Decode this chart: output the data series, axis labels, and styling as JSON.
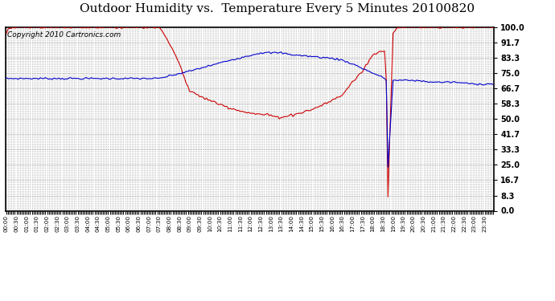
{
  "title": "Outdoor Humidity vs.  Temperature Every 5 Minutes 20100820",
  "copyright_text": "Copyright 2010 Cartronics.com",
  "background_color": "#ffffff",
  "plot_bg_color": "#ffffff",
  "grid_color": "#aaaaaa",
  "line_color_humidity": "#0000cc",
  "line_color_temp": "#cc0000",
  "ylim": [
    0.0,
    100.0
  ],
  "yticks": [
    0.0,
    8.3,
    16.7,
    25.0,
    33.3,
    41.7,
    50.0,
    58.3,
    66.7,
    75.0,
    83.3,
    91.7,
    100.0
  ],
  "ytick_labels": [
    "0.0",
    "8.3",
    "16.7",
    "25.0",
    "33.3",
    "41.7",
    "50.0",
    "58.3",
    "66.7",
    "75.0",
    "83.3",
    "91.7",
    "100.0"
  ],
  "title_fontsize": 11,
  "copyright_fontsize": 6.5,
  "humidity_times": [
    0,
    1,
    7,
    7.5,
    9,
    11,
    12.5,
    13,
    13.5,
    14,
    15,
    16,
    16.5,
    17,
    18,
    18.6,
    18.67,
    18.72,
    18.73,
    19,
    20,
    21,
    22,
    23,
    23.92
  ],
  "humidity_vals": [
    72,
    72,
    72,
    72,
    76,
    82,
    86,
    86,
    86,
    85,
    84,
    83,
    82,
    80,
    75,
    72,
    71,
    71,
    20,
    71,
    71,
    70,
    70,
    69,
    69
  ],
  "temp_times": [
    0,
    0.1,
    0.5,
    1,
    7,
    7.5,
    8,
    8.5,
    9,
    10,
    11,
    12,
    13,
    13.2,
    13.5,
    14,
    15,
    16,
    16.5,
    17,
    17.5,
    18,
    18.5,
    18.65,
    18.7,
    18.73,
    19.0,
    19.2,
    20,
    21,
    22,
    23,
    23.92
  ],
  "temp_vals": [
    97,
    99,
    100,
    100,
    100,
    100,
    92,
    80,
    65,
    60,
    56,
    53,
    52,
    51,
    51,
    52,
    55,
    60,
    63,
    70,
    76,
    85,
    87,
    88,
    40,
    1,
    97,
    100,
    100,
    100,
    100,
    100,
    100
  ]
}
